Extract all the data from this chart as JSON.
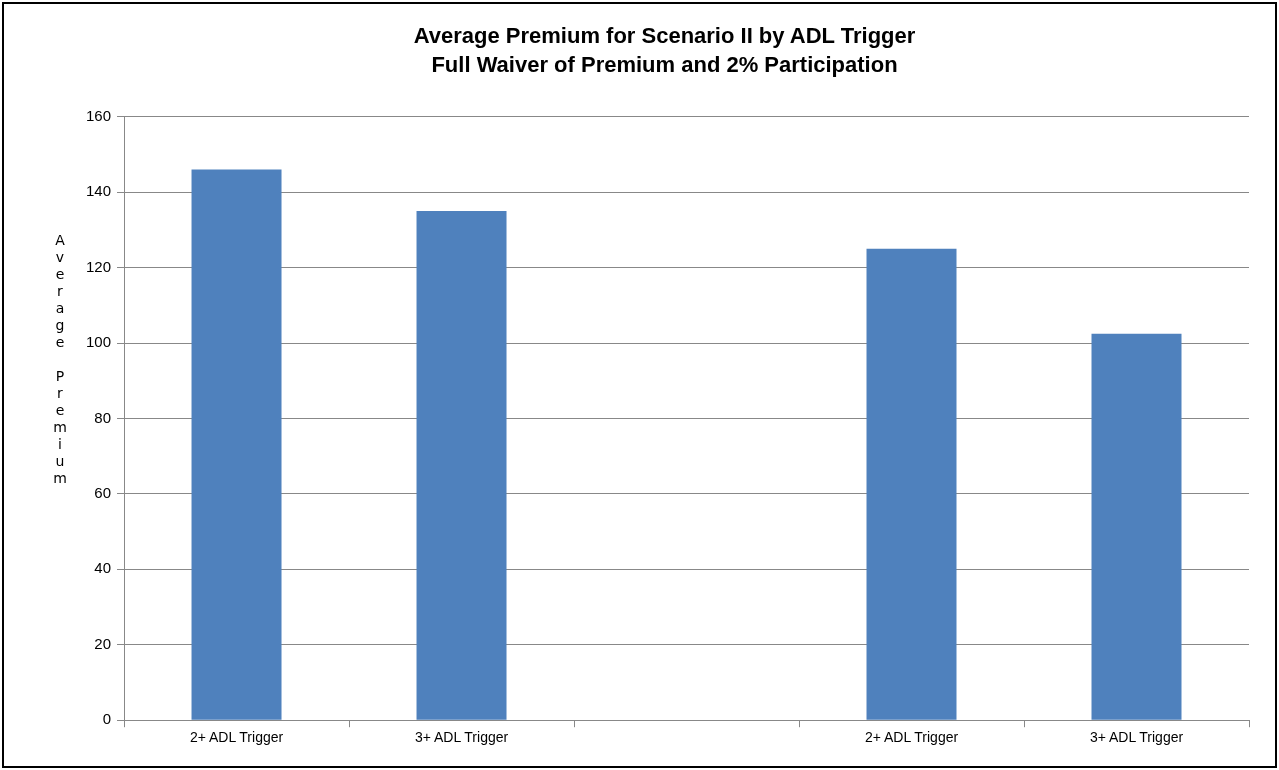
{
  "chart_data": {
    "type": "bar",
    "title": "Average Premium for Scenario II by ADL Trigger",
    "subtitle": "Full Waiver of Premium and 2% Participation",
    "ylabel": "Average Premium",
    "categories": [
      "2+ ADL Trigger",
      "3+ ADL Trigger",
      null,
      "2+ ADL Trigger",
      "3+ ADL Trigger"
    ],
    "values": [
      146,
      135,
      null,
      125,
      102.5
    ],
    "color": "#4f81bd",
    "ylim": [
      0,
      160
    ],
    "yticks": [
      0,
      20,
      40,
      60,
      80,
      100,
      120,
      140,
      160
    ],
    "grid": "y",
    "legend": false
  }
}
